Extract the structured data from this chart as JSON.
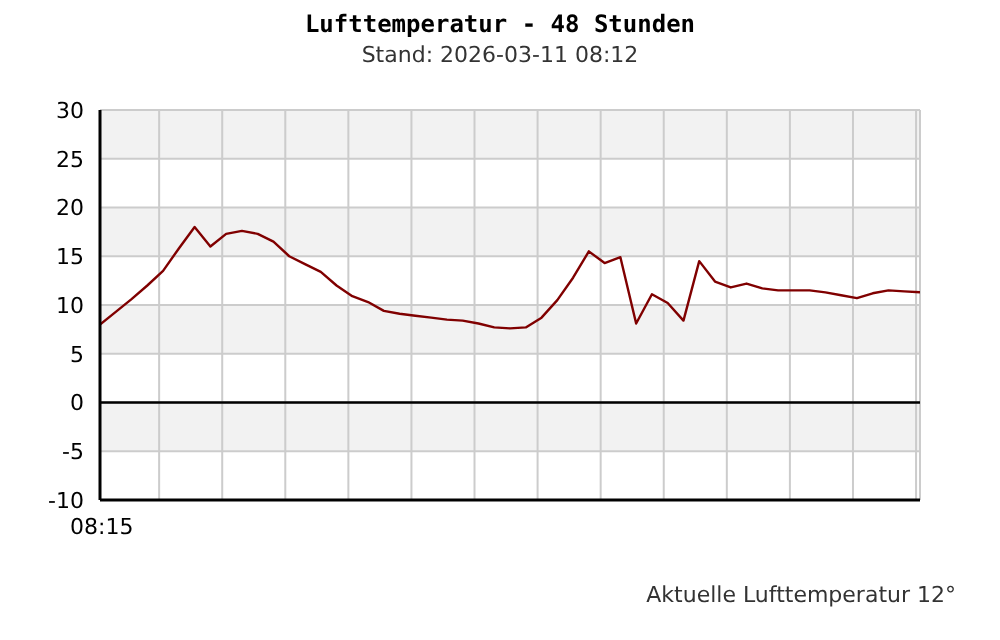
{
  "chart_data": {
    "type": "line",
    "title": "Lufttemperatur - 48 Stunden",
    "subtitle": "Stand: 2026-03-11 08:12",
    "annotations": [
      "08:15",
      "Aktuelle Lufttemperatur 12°"
    ],
    "categories": [
      null,
      null,
      null,
      null,
      null,
      null,
      null,
      null,
      null,
      null,
      null,
      null,
      null,
      null,
      null,
      null,
      null,
      null,
      null,
      null,
      null,
      null,
      null,
      null,
      null,
      null,
      null,
      null,
      null,
      null,
      null,
      null,
      null,
      null,
      null,
      null,
      null,
      null,
      null,
      null,
      null,
      null,
      null,
      null,
      null,
      null,
      null,
      null,
      null,
      null,
      null,
      null,
      null
    ],
    "series": [
      {
        "color": "#800000",
        "values": [
          8.0,
          9.3,
          10.6,
          12.0,
          13.5,
          15.8,
          18.0,
          16.0,
          17.3,
          17.6,
          17.3,
          16.5,
          15.0,
          14.2,
          13.4,
          12.0,
          10.9,
          10.3,
          9.4,
          9.1,
          8.9,
          8.7,
          8.5,
          8.4,
          8.1,
          7.7,
          7.6,
          7.7,
          8.7,
          10.5,
          12.8,
          15.5,
          14.3,
          14.9,
          8.1,
          11.1,
          10.2,
          8.4,
          14.5,
          12.4,
          11.8,
          12.2,
          11.7,
          11.5,
          11.5,
          11.5,
          11.3,
          11.0,
          10.7,
          11.2,
          11.5,
          11.4,
          11.3
        ]
      }
    ],
    "ylim": [
      -10,
      30
    ],
    "yticks": [
      -10,
      -5,
      0,
      5,
      10,
      15,
      20,
      25,
      30
    ],
    "ref_lines": [
      {
        "axis": "y",
        "value": 0,
        "color": "#000000"
      }
    ],
    "grid": true,
    "marker": "none",
    "line_style": "solid",
    "legend": false
  }
}
